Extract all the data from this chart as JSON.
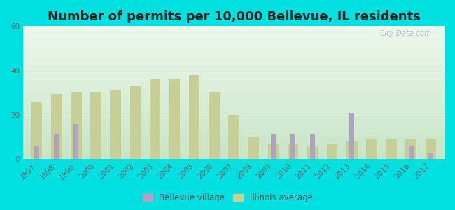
{
  "title": "Number of permits per 10,000 Bellevue, IL residents",
  "years": [
    1997,
    1998,
    1999,
    2000,
    2001,
    2002,
    2003,
    2004,
    2005,
    2006,
    2007,
    2008,
    2009,
    2010,
    2011,
    2012,
    2013,
    2014,
    2015,
    2016,
    2017
  ],
  "bellevue": [
    6,
    11,
    16,
    0,
    0,
    0,
    0,
    0,
    0,
    0,
    0,
    0,
    11,
    11,
    11,
    0,
    21,
    0,
    0,
    6,
    3
  ],
  "illinois": [
    26,
    29,
    30,
    30,
    31,
    33,
    36,
    36,
    38,
    30,
    20,
    10,
    7,
    7,
    6,
    7,
    8,
    9,
    9,
    9,
    9
  ],
  "bellevue_color": "#b3a0c8",
  "illinois_color": "#c8cf96",
  "background_color_outer": "#00e0e0",
  "ylim": [
    0,
    60
  ],
  "yticks": [
    0,
    20,
    40,
    60
  ],
  "bar_width": 0.55,
  "legend_labels": [
    "Bellevue village",
    "Illinois average"
  ],
  "title_fontsize": 13,
  "tick_fontsize": 7.5,
  "watermark": "City-Data.com"
}
